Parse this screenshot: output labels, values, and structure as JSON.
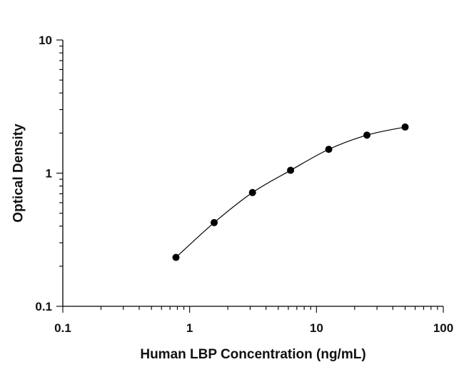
{
  "chart_data": {
    "type": "scatter",
    "xlabel": "Human LBP Concentration (ng/mL)",
    "ylabel": "Optical Density",
    "xscale": "log",
    "yscale": "log",
    "xlim": [
      0.1,
      100
    ],
    "ylim": [
      0.1,
      10
    ],
    "x_ticks": [
      "0.1",
      "1",
      "10",
      "100"
    ],
    "y_ticks": [
      "0.1",
      "1",
      "10"
    ],
    "grid": false,
    "legend": "none",
    "fit": "smooth-curve",
    "series": [
      {
        "x": [
          0.78,
          1.56,
          3.13,
          6.25,
          12.5,
          25,
          50
        ],
        "y": [
          0.233,
          0.425,
          0.715,
          1.05,
          1.51,
          1.93,
          2.22
        ]
      }
    ],
    "colors": {
      "marker": "#000000",
      "line": "#000000"
    }
  }
}
